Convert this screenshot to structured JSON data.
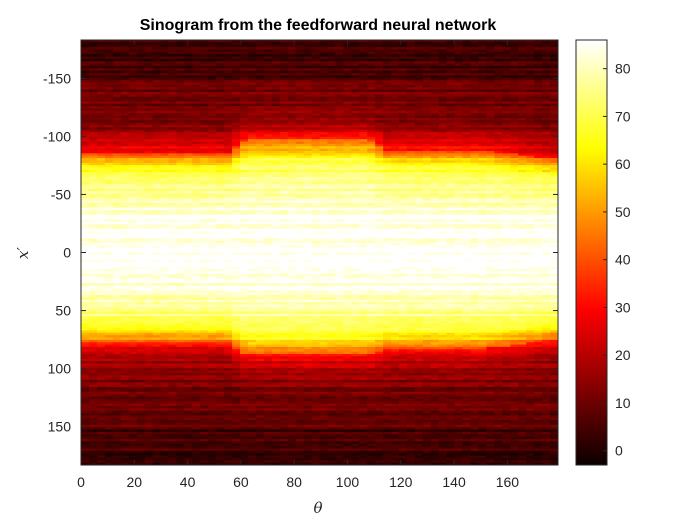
{
  "chart_data": {
    "type": "heatmap",
    "title": "Sinogram from the feedforward neural network",
    "xlabel": "θ",
    "ylabel": "x′",
    "colormap": "hot",
    "xlim": [
      0,
      179
    ],
    "ylim": [
      -183,
      183
    ],
    "y_reversed": true,
    "x_ticks": [
      0,
      20,
      40,
      60,
      80,
      100,
      120,
      140,
      160
    ],
    "y_ticks": [
      -150,
      -100,
      -50,
      0,
      50,
      100,
      150
    ],
    "clim": [
      -3,
      86
    ],
    "colorbar_ticks": [
      0,
      10,
      20,
      30,
      40,
      50,
      60,
      70,
      80
    ],
    "region_boundaries": [
      {
        "theta": 0,
        "upper_edge": -85,
        "lower_edge": 78
      },
      {
        "theta": 55,
        "upper_edge": -85,
        "lower_edge": 78
      },
      {
        "theta": 62,
        "upper_edge": -97,
        "lower_edge": 88
      },
      {
        "theta": 108,
        "upper_edge": -97,
        "lower_edge": 88
      },
      {
        "theta": 115,
        "upper_edge": -88,
        "lower_edge": 83
      },
      {
        "theta": 150,
        "upper_edge": -88,
        "lower_edge": 83
      },
      {
        "theta": 179,
        "upper_edge": -80,
        "lower_edge": 75
      }
    ],
    "peak_value": 86,
    "background_value": 8,
    "colors": {
      "axes_edge": "#262626",
      "background": "#ffffff"
    }
  }
}
